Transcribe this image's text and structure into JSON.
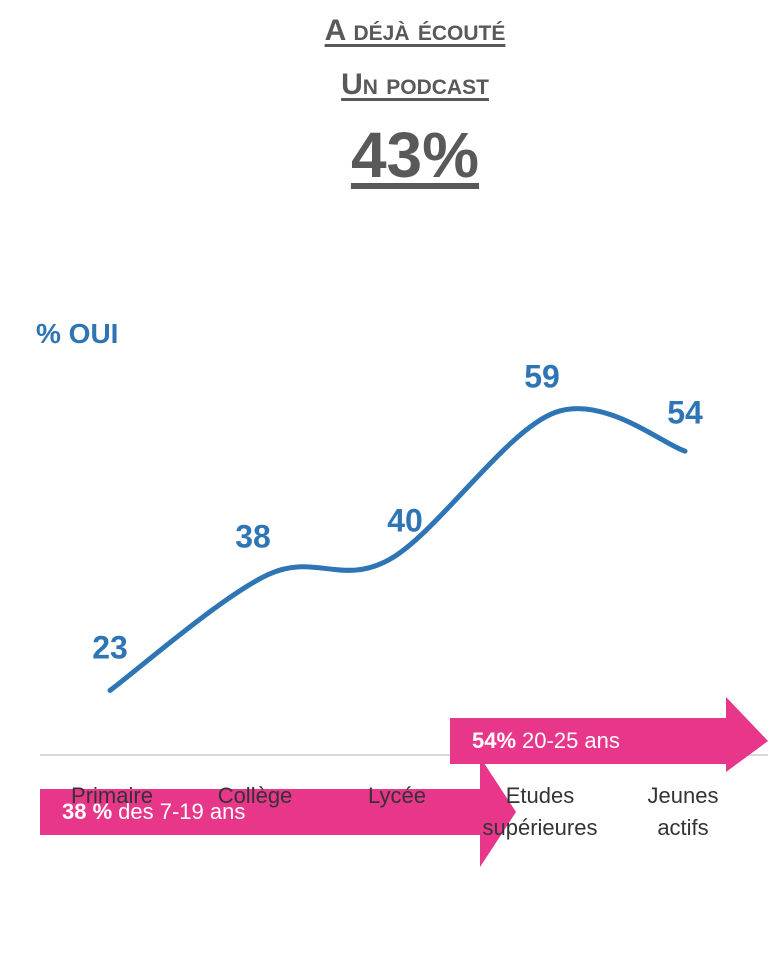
{
  "chart_data": {
    "type": "line",
    "title": [
      "A déjà écouté",
      "Un podcast"
    ],
    "headline": {
      "value": 43,
      "label": "43%"
    },
    "ylabel": "% OUI",
    "categories": [
      "Primaire",
      "Collège",
      "Lycée",
      "Etudes supérieures",
      "Jeunes actifs"
    ],
    "values": [
      23,
      38,
      40,
      59,
      54
    ],
    "color": "#2e75b6",
    "ylim": [
      0,
      100
    ],
    "annotations": [
      {
        "bold": "38 %",
        "text": "des 7-19 ans",
        "color": "#e8368a"
      },
      {
        "bold": "54%",
        "text": "20-25 ans",
        "color": "#e8368a"
      }
    ]
  }
}
